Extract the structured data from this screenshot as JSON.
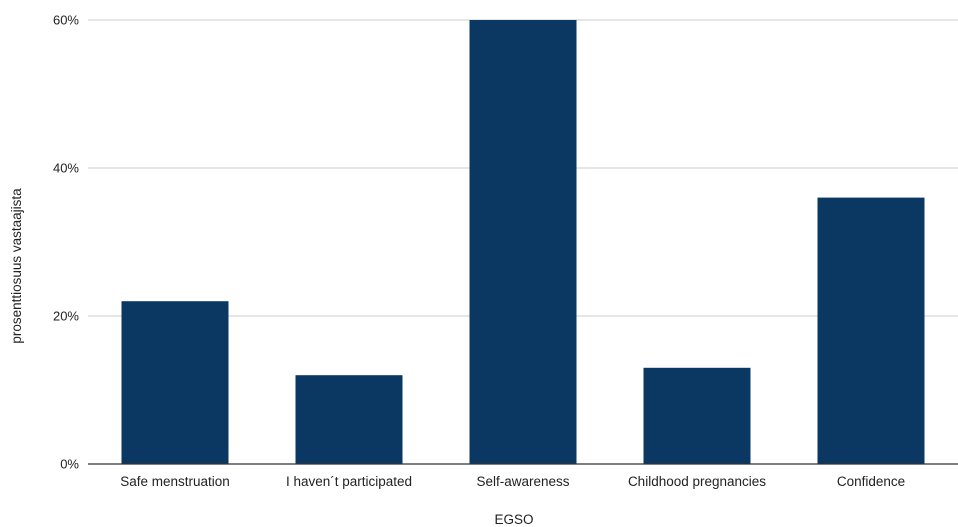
{
  "chart_data": {
    "type": "bar",
    "categories": [
      "Safe menstruation",
      "I haven´t participated",
      "Self-awareness",
      "Childhood pregnancies",
      "Confidence"
    ],
    "values": [
      22,
      12,
      60,
      13,
      36
    ],
    "value_unit": "%",
    "xlabel": "EGSO",
    "ylabel": "prosenttiosuus vastaajista",
    "ylim": [
      0,
      60
    ],
    "yticks": [
      0,
      20,
      40,
      60
    ],
    "ytick_labels": [
      "0%",
      "20%",
      "40%",
      "60%"
    ],
    "grid": true,
    "legend": "none",
    "bar_color": "#0a3863",
    "grid_color": "#cccccc",
    "axis_color": "#333333"
  }
}
